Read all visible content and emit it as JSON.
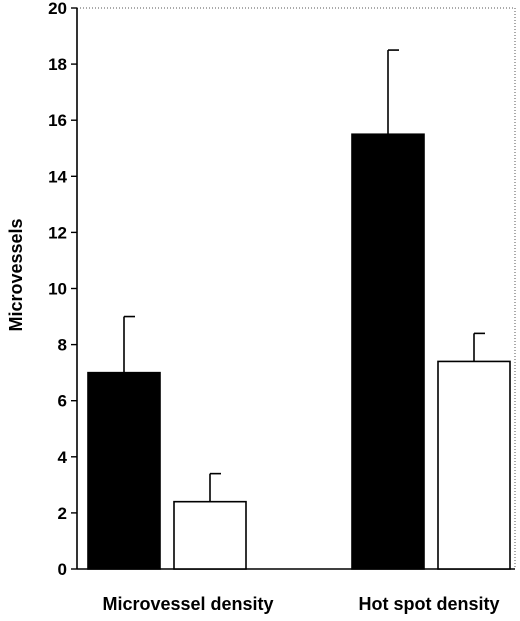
{
  "chart_data": {
    "type": "bar",
    "title": "",
    "xlabel": "",
    "ylabel": "Microvessels",
    "ylim": [
      0,
      20
    ],
    "yticks": [
      0,
      2,
      4,
      6,
      8,
      10,
      12,
      14,
      16,
      18,
      20
    ],
    "categories": [
      "Microvessel density",
      "Hot spot density"
    ],
    "grid": false,
    "legend": "none",
    "series": [
      {
        "color": "#000000",
        "values": [
          7.0,
          15.5
        ],
        "error": [
          2.0,
          3.0
        ]
      },
      {
        "color": "#ffffff",
        "values": [
          2.4,
          7.4
        ],
        "error": [
          1.0,
          1.0
        ]
      }
    ]
  }
}
